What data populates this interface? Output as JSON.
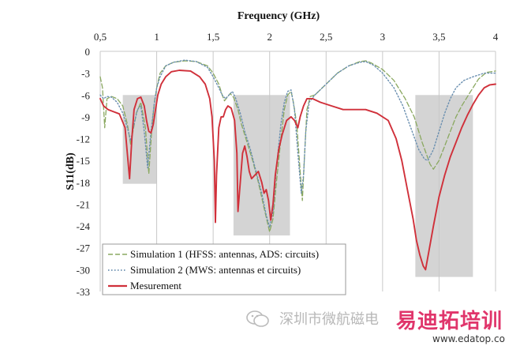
{
  "chart_data": {
    "type": "line",
    "xlabel": "Frequency  (GHz)",
    "ylabel": "S11(dB)",
    "xlim": [
      0.5,
      4
    ],
    "ylim": [
      -33,
      0
    ],
    "xticks": [
      "0,5",
      "1",
      "1,5",
      "2",
      "2,5",
      "3",
      "3,5",
      "4"
    ],
    "xtick_values": [
      0.5,
      1,
      1.5,
      2,
      2.5,
      3,
      3.5,
      4
    ],
    "yticks": [
      0,
      -3,
      -6,
      -9,
      -12,
      -15,
      -18,
      -21,
      -24,
      -27,
      -30,
      -33
    ],
    "grid": "vertical",
    "legend_position": "bottom-left",
    "shaded_regions": [
      {
        "x": [
          0.7,
          1.0
        ],
        "y": [
          -18.2,
          -6
        ]
      },
      {
        "x": [
          1.68,
          2.18
        ],
        "y": [
          -25.3,
          -6
        ]
      },
      {
        "x": [
          3.29,
          3.8
        ],
        "y": [
          -31,
          -6
        ]
      }
    ],
    "series": [
      {
        "name": "Simulation 1 (HFSS: antennas, ADS: circuits)",
        "color": "#8aa860",
        "style": "dashed",
        "points": [
          [
            0.5,
            -3.5
          ],
          [
            0.52,
            -5
          ],
          [
            0.54,
            -10.5
          ],
          [
            0.56,
            -6.5
          ],
          [
            0.6,
            -6.2
          ],
          [
            0.65,
            -6.5
          ],
          [
            0.7,
            -7.5
          ],
          [
            0.74,
            -10
          ],
          [
            0.77,
            -12.8
          ],
          [
            0.79,
            -11
          ],
          [
            0.82,
            -8.5
          ],
          [
            0.86,
            -7
          ],
          [
            0.9,
            -10.5
          ],
          [
            0.93,
            -16.8
          ],
          [
            0.96,
            -10
          ],
          [
            0.98,
            -7
          ],
          [
            1.0,
            -5
          ],
          [
            1.03,
            -3
          ],
          [
            1.08,
            -2
          ],
          [
            1.15,
            -1.5
          ],
          [
            1.25,
            -1.3
          ],
          [
            1.35,
            -1.4
          ],
          [
            1.45,
            -2
          ],
          [
            1.5,
            -3
          ],
          [
            1.55,
            -4.5
          ],
          [
            1.58,
            -6
          ],
          [
            1.6,
            -6.8
          ],
          [
            1.63,
            -6.2
          ],
          [
            1.65,
            -5.8
          ],
          [
            1.68,
            -6.3
          ],
          [
            1.72,
            -8
          ],
          [
            1.75,
            -10
          ],
          [
            1.8,
            -12.5
          ],
          [
            1.85,
            -15
          ],
          [
            1.9,
            -18
          ],
          [
            1.95,
            -21.5
          ],
          [
            2.0,
            -24.8
          ],
          [
            2.03,
            -23
          ],
          [
            2.06,
            -18
          ],
          [
            2.1,
            -12
          ],
          [
            2.13,
            -8
          ],
          [
            2.16,
            -6
          ],
          [
            2.19,
            -5.5
          ],
          [
            2.21,
            -7
          ],
          [
            2.24,
            -10
          ],
          [
            2.27,
            -16.5
          ],
          [
            2.29,
            -20.5
          ],
          [
            2.31,
            -14
          ],
          [
            2.33,
            -8
          ],
          [
            2.36,
            -6.2
          ],
          [
            2.4,
            -6
          ],
          [
            2.5,
            -4.5
          ],
          [
            2.6,
            -3
          ],
          [
            2.7,
            -2
          ],
          [
            2.8,
            -1.4
          ],
          [
            2.85,
            -1.3
          ],
          [
            2.9,
            -1.6
          ],
          [
            3.0,
            -2.5
          ],
          [
            3.1,
            -4
          ],
          [
            3.2,
            -6.5
          ],
          [
            3.28,
            -9
          ],
          [
            3.35,
            -12.5
          ],
          [
            3.42,
            -15.5
          ],
          [
            3.45,
            -16.2
          ],
          [
            3.5,
            -15
          ],
          [
            3.55,
            -13
          ],
          [
            3.6,
            -11
          ],
          [
            3.65,
            -9
          ],
          [
            3.7,
            -7.5
          ],
          [
            3.78,
            -5.5
          ],
          [
            3.85,
            -3.8
          ],
          [
            3.92,
            -2.9
          ],
          [
            4.0,
            -2.7
          ]
        ]
      },
      {
        "name": "Simulation 2 (MWS: antennas et circuits)",
        "color": "#6a8fb0",
        "style": "dotted",
        "points": [
          [
            0.5,
            -6
          ],
          [
            0.53,
            -6.5
          ],
          [
            0.56,
            -6.2
          ],
          [
            0.6,
            -6.3
          ],
          [
            0.65,
            -7
          ],
          [
            0.7,
            -8.5
          ],
          [
            0.74,
            -10.5
          ],
          [
            0.77,
            -12.3
          ],
          [
            0.8,
            -10
          ],
          [
            0.83,
            -8
          ],
          [
            0.86,
            -7.5
          ],
          [
            0.89,
            -11
          ],
          [
            0.92,
            -16
          ],
          [
            0.95,
            -11
          ],
          [
            0.98,
            -7
          ],
          [
            1.0,
            -5
          ],
          [
            1.03,
            -3.5
          ],
          [
            1.08,
            -2
          ],
          [
            1.15,
            -1.5
          ],
          [
            1.25,
            -1.2
          ],
          [
            1.35,
            -1.4
          ],
          [
            1.45,
            -2.2
          ],
          [
            1.5,
            -3.5
          ],
          [
            1.55,
            -5
          ],
          [
            1.58,
            -6
          ],
          [
            1.61,
            -6.5
          ],
          [
            1.64,
            -6
          ],
          [
            1.67,
            -5.5
          ],
          [
            1.7,
            -6.5
          ],
          [
            1.74,
            -8.5
          ],
          [
            1.78,
            -11
          ],
          [
            1.83,
            -13.5
          ],
          [
            1.88,
            -16.5
          ],
          [
            1.93,
            -19.5
          ],
          [
            1.97,
            -22.5
          ],
          [
            2.0,
            -24.2
          ],
          [
            2.03,
            -22
          ],
          [
            2.06,
            -16
          ],
          [
            2.1,
            -10
          ],
          [
            2.13,
            -7
          ],
          [
            2.16,
            -5.5
          ],
          [
            2.19,
            -5.3
          ],
          [
            2.22,
            -8
          ],
          [
            2.25,
            -14
          ],
          [
            2.28,
            -19.5
          ],
          [
            2.3,
            -17
          ],
          [
            2.32,
            -11
          ],
          [
            2.35,
            -7
          ],
          [
            2.4,
            -6
          ],
          [
            2.5,
            -4.5
          ],
          [
            2.6,
            -3
          ],
          [
            2.7,
            -2
          ],
          [
            2.8,
            -1.5
          ],
          [
            2.85,
            -1.4
          ],
          [
            2.92,
            -1.9
          ],
          [
            3.0,
            -3
          ],
          [
            3.1,
            -5
          ],
          [
            3.18,
            -7.5
          ],
          [
            3.25,
            -10.5
          ],
          [
            3.32,
            -13.5
          ],
          [
            3.37,
            -14.8
          ],
          [
            3.4,
            -15
          ],
          [
            3.45,
            -13.5
          ],
          [
            3.5,
            -11
          ],
          [
            3.55,
            -8.5
          ],
          [
            3.6,
            -6.5
          ],
          [
            3.65,
            -5
          ],
          [
            3.72,
            -4
          ],
          [
            3.8,
            -3.5
          ],
          [
            3.9,
            -3
          ],
          [
            4.0,
            -3
          ]
        ]
      },
      {
        "name": "Mesurement",
        "color": "#d0303a",
        "style": "solid",
        "points": [
          [
            0.5,
            -6.5
          ],
          [
            0.53,
            -7.5
          ],
          [
            0.57,
            -8
          ],
          [
            0.62,
            -8.3
          ],
          [
            0.67,
            -8.6
          ],
          [
            0.72,
            -10.5
          ],
          [
            0.76,
            -17.5
          ],
          [
            0.78,
            -12
          ],
          [
            0.8,
            -8
          ],
          [
            0.83,
            -6.5
          ],
          [
            0.86,
            -6.3
          ],
          [
            0.89,
            -7.5
          ],
          [
            0.91,
            -9.5
          ],
          [
            0.93,
            -11
          ],
          [
            0.95,
            -11.2
          ],
          [
            0.97,
            -10
          ],
          [
            0.99,
            -8
          ],
          [
            1.01,
            -6
          ],
          [
            1.04,
            -4.5
          ],
          [
            1.08,
            -3.5
          ],
          [
            1.13,
            -2.8
          ],
          [
            1.2,
            -2.6
          ],
          [
            1.3,
            -2.7
          ],
          [
            1.38,
            -3.5
          ],
          [
            1.43,
            -4.5
          ],
          [
            1.47,
            -6.5
          ],
          [
            1.49,
            -9
          ],
          [
            1.51,
            -15
          ],
          [
            1.52,
            -23.5
          ],
          [
            1.53,
            -17
          ],
          [
            1.55,
            -10.5
          ],
          [
            1.57,
            -9
          ],
          [
            1.59,
            -9
          ],
          [
            1.61,
            -8
          ],
          [
            1.63,
            -7.5
          ],
          [
            1.66,
            -7.8
          ],
          [
            1.69,
            -9.5
          ],
          [
            1.71,
            -14
          ],
          [
            1.72,
            -22
          ],
          [
            1.74,
            -18
          ],
          [
            1.76,
            -14
          ],
          [
            1.78,
            -13
          ],
          [
            1.8,
            -14.5
          ],
          [
            1.82,
            -16.5
          ],
          [
            1.84,
            -17.5
          ],
          [
            1.87,
            -17
          ],
          [
            1.9,
            -16.5
          ],
          [
            1.93,
            -18
          ],
          [
            1.95,
            -19.5
          ],
          [
            1.97,
            -19
          ],
          [
            1.99,
            -20.5
          ],
          [
            2.01,
            -23.2
          ],
          [
            2.03,
            -21
          ],
          [
            2.05,
            -17
          ],
          [
            2.08,
            -13.5
          ],
          [
            2.11,
            -11.5
          ],
          [
            2.15,
            -9.5
          ],
          [
            2.19,
            -9
          ],
          [
            2.22,
            -9.5
          ],
          [
            2.25,
            -10.5
          ],
          [
            2.27,
            -9
          ],
          [
            2.3,
            -7.5
          ],
          [
            2.33,
            -6.5
          ],
          [
            2.38,
            -6.5
          ],
          [
            2.45,
            -7
          ],
          [
            2.55,
            -7.5
          ],
          [
            2.65,
            -8
          ],
          [
            2.75,
            -8
          ],
          [
            2.85,
            -8
          ],
          [
            2.95,
            -8.5
          ],
          [
            3.05,
            -9.5
          ],
          [
            3.12,
            -12
          ],
          [
            3.17,
            -15
          ],
          [
            3.22,
            -19
          ],
          [
            3.27,
            -23
          ],
          [
            3.3,
            -26
          ],
          [
            3.33,
            -28
          ],
          [
            3.36,
            -29.5
          ],
          [
            3.38,
            -30
          ],
          [
            3.41,
            -27.5
          ],
          [
            3.45,
            -24
          ],
          [
            3.5,
            -20
          ],
          [
            3.55,
            -17
          ],
          [
            3.6,
            -14.5
          ],
          [
            3.65,
            -12.5
          ],
          [
            3.7,
            -10.5
          ],
          [
            3.75,
            -8.8
          ],
          [
            3.8,
            -7.3
          ],
          [
            3.85,
            -6
          ],
          [
            3.9,
            -5
          ],
          [
            3.95,
            -4.6
          ],
          [
            4.0,
            -4.5
          ]
        ]
      }
    ]
  },
  "watermark": {
    "text": "深圳市微航磁电",
    "brand": "易迪拓培训",
    "url": "www.edatop.com"
  }
}
